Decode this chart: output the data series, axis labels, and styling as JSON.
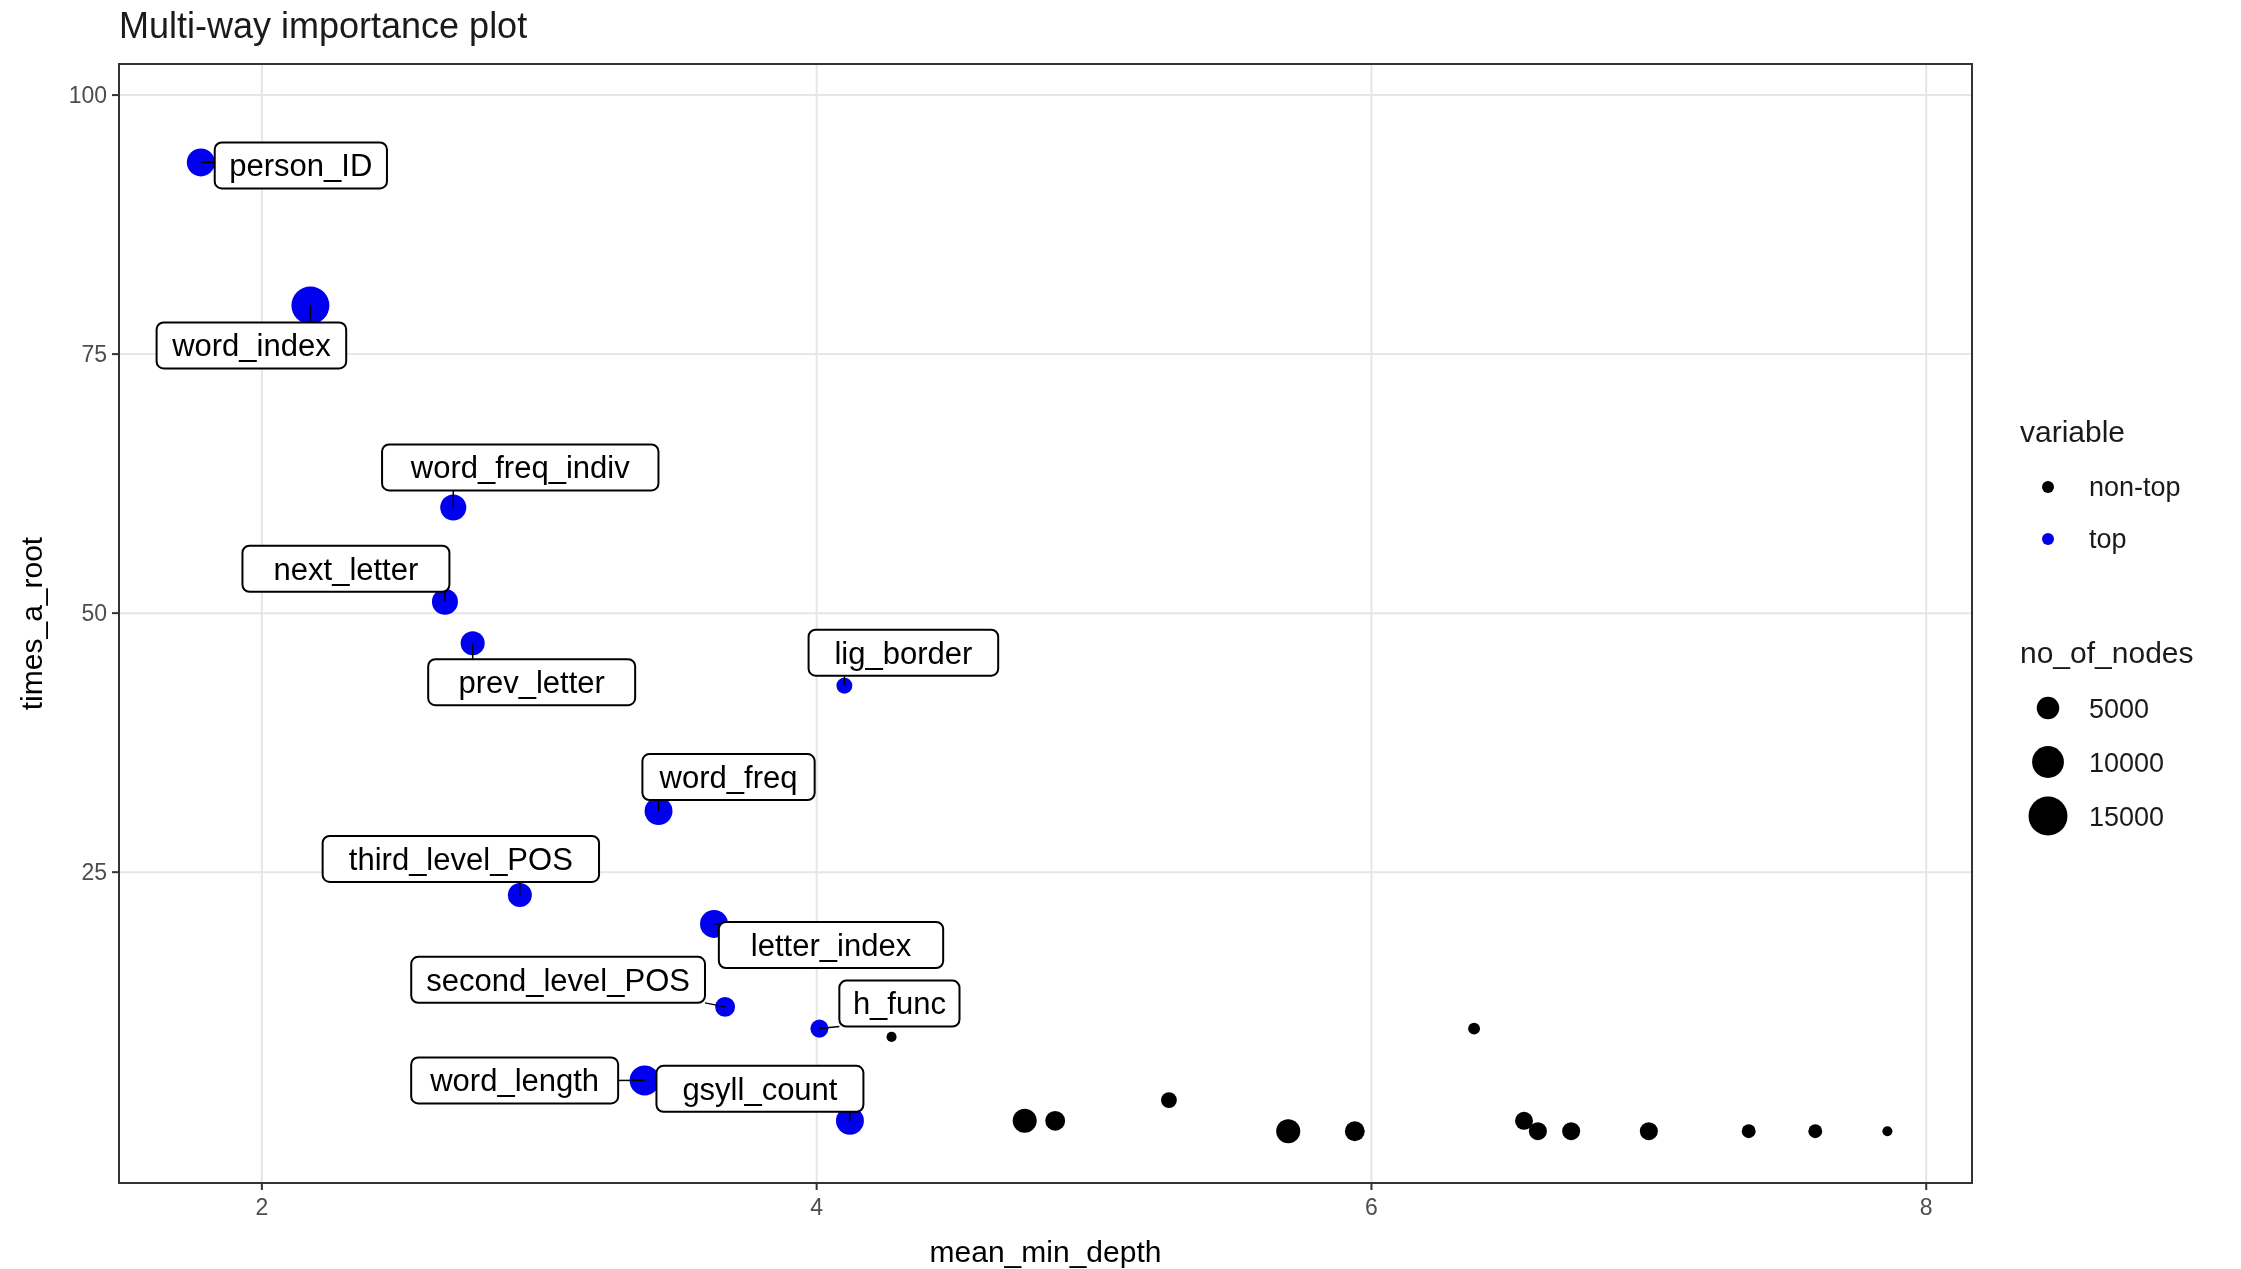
{
  "chart_data": {
    "type": "bubble",
    "title": "Multi-way importance plot",
    "xlabel": "mean_min_depth",
    "ylabel": "times_a_root",
    "legend_title": "variable",
    "xlim": [
      1.485,
      8.165
    ],
    "xticks": [
      2,
      4,
      6,
      8
    ],
    "ylim": [
      -5,
      103
    ],
    "yticks": [
      25,
      50,
      75,
      100
    ],
    "grid": true,
    "legend": "right",
    "marker": "circle",
    "size_legend": [
      5000,
      10000,
      15000
    ],
    "series": [
      {
        "name": "non-top",
        "color": "#000000",
        "x": [
          4.27,
          6.37,
          5.27,
          4.75,
          4.86,
          6.55,
          5.7,
          5.94,
          6.6,
          6.72,
          7.0,
          7.36,
          7.6,
          7.86
        ],
        "values": [
          9.1,
          9.9,
          3.0,
          1.0,
          1.0,
          1.0,
          0,
          0,
          0,
          0,
          0,
          0,
          0,
          0
        ],
        "sizes": [
          1000,
          1400,
          2500,
          5700,
          3900,
          3200,
          5700,
          3900,
          3200,
          3200,
          3200,
          1900,
          1900,
          1000
        ]
      },
      {
        "name": "top",
        "color": "#0000ee",
        "x": [
          1.78,
          2.175,
          2.69,
          2.66,
          2.76,
          4.1,
          3.43,
          2.93,
          3.63,
          3.67,
          4.01,
          3.38,
          4.12
        ],
        "values": [
          93.5,
          79.7,
          60.2,
          51.1,
          47.1,
          43.0,
          30.9,
          22.8,
          20.0,
          12.0,
          9.9,
          4.9,
          1.0
        ],
        "sizes": [
          7700,
          14200,
          6700,
          6700,
          5700,
          2500,
          7700,
          5700,
          7700,
          3900,
          3200,
          8900,
          7700
        ]
      }
    ],
    "annotations": [
      "person_ID",
      "word_index",
      "word_freq_indiv",
      "next_letter",
      "prev_letter",
      "lig_border",
      "word_freq",
      "third_level_POS",
      "letter_index",
      "second_level_POS",
      "h_func",
      "word_length",
      "gsyll_count",
      "no_of_nodes"
    ]
  }
}
